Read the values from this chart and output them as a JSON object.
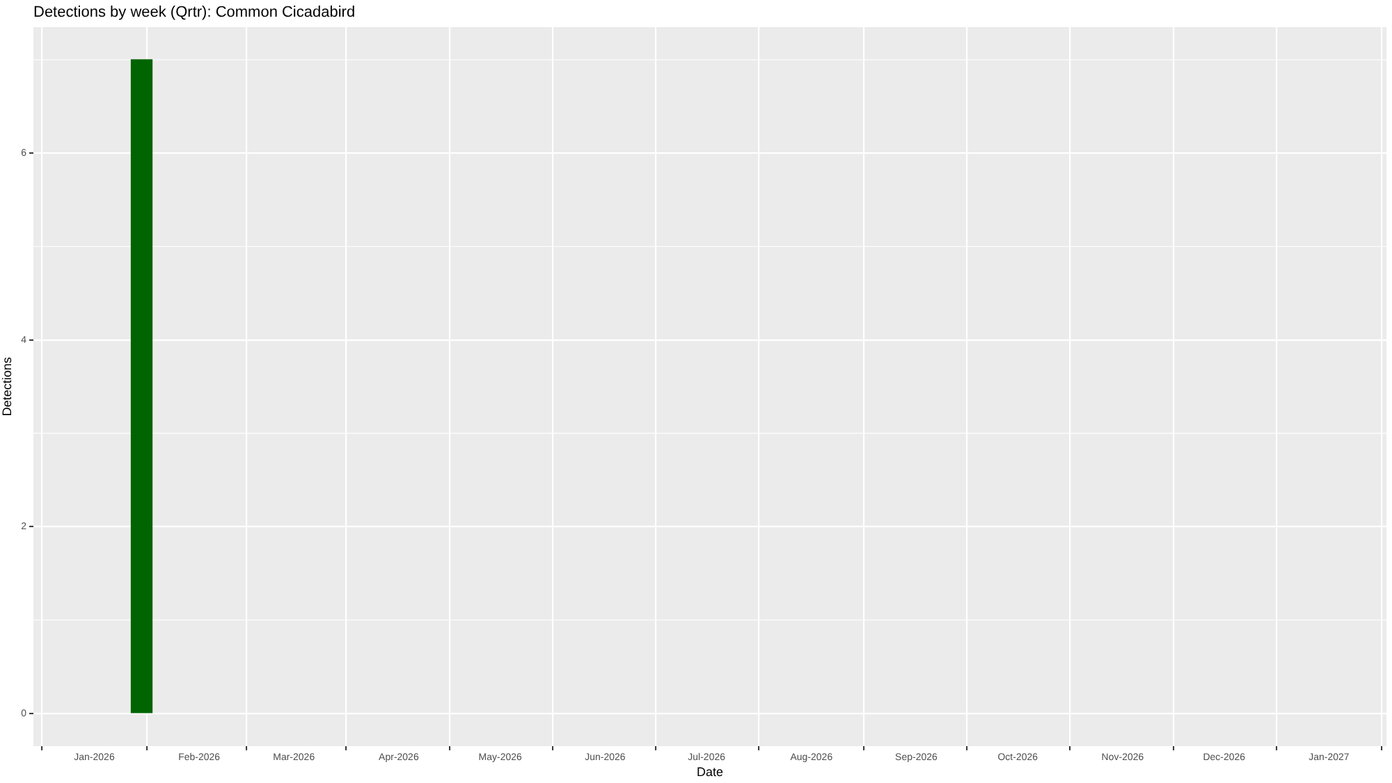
{
  "chart_data": {
    "type": "bar",
    "title": "Detections by week (Qrtr): Common Cicadabird",
    "xlabel": "Date",
    "ylabel": "Detections",
    "x": [
      "2026-01-15"
    ],
    "values": [
      7
    ],
    "color": "#006400",
    "xlim": [
      "2025-12-14",
      "2027-01-18"
    ],
    "xticks": [
      {
        "value": "2026-01-01",
        "label": "Jan-2026"
      },
      {
        "value": "2026-02-01",
        "label": "Feb-2026"
      },
      {
        "value": "2026-03-01",
        "label": "Mar-2026"
      },
      {
        "value": "2026-04-01",
        "label": "Apr-2026"
      },
      {
        "value": "2026-05-01",
        "label": "May-2026"
      },
      {
        "value": "2026-06-01",
        "label": "Jun-2026"
      },
      {
        "value": "2026-07-01",
        "label": "Jul-2026"
      },
      {
        "value": "2026-08-01",
        "label": "Aug-2026"
      },
      {
        "value": "2026-09-01",
        "label": "Sep-2026"
      },
      {
        "value": "2026-10-01",
        "label": "Oct-2026"
      },
      {
        "value": "2026-11-01",
        "label": "Nov-2026"
      },
      {
        "value": "2026-12-01",
        "label": "Dec-2026"
      },
      {
        "value": "2027-01-01",
        "label": "Jan-2027"
      }
    ],
    "ylim": [
      -0.35,
      7.35
    ],
    "yticks": [
      0,
      2,
      4,
      6
    ],
    "grid": true
  }
}
